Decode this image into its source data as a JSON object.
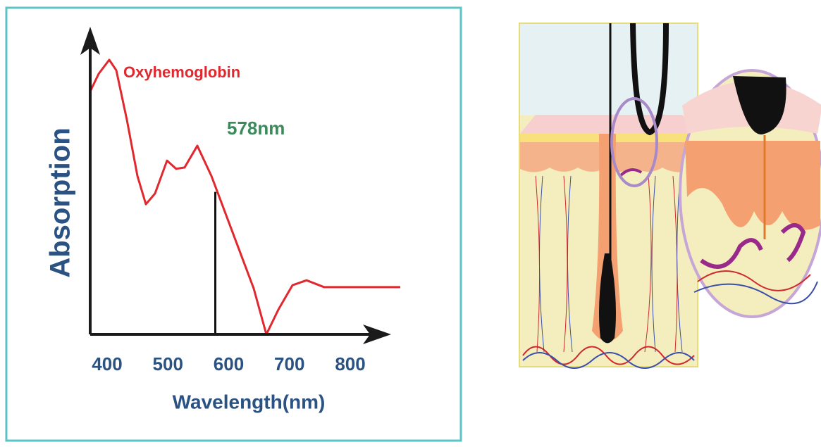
{
  "chart_data": {
    "type": "line",
    "xlabel": "Wavelength(nm)",
    "ylabel": "Absorption",
    "x": [
      372.2,
      386.1,
      403.5,
      415.1,
      432.5,
      449.9,
      463.8,
      478.8,
      498.6,
      513.6,
      527.5,
      548.4,
      571.6,
      606.4,
      641.2,
      662.0,
      681.7,
      704.9,
      728.1,
      757.1,
      803.5,
      882.3
    ],
    "series": [
      {
        "name": "Oxyhemoglobin",
        "color": "#e0282e",
        "values": [
          88.5,
          94.9,
          100,
          96.2,
          78.2,
          57.7,
          47.4,
          51.3,
          63.3,
          60.3,
          60.8,
          68.7,
          57.7,
          37.2,
          16.7,
          0,
          9.0,
          17.9,
          19.7,
          17.2,
          17.2,
          17.2
        ]
      }
    ],
    "annotation": {
      "text": "578nm",
      "x": 578
    },
    "xlim": [
      372.2,
      882.3
    ],
    "xticks": [
      400,
      500,
      600,
      700,
      800
    ],
    "ylim": [
      0,
      100
    ]
  }
}
